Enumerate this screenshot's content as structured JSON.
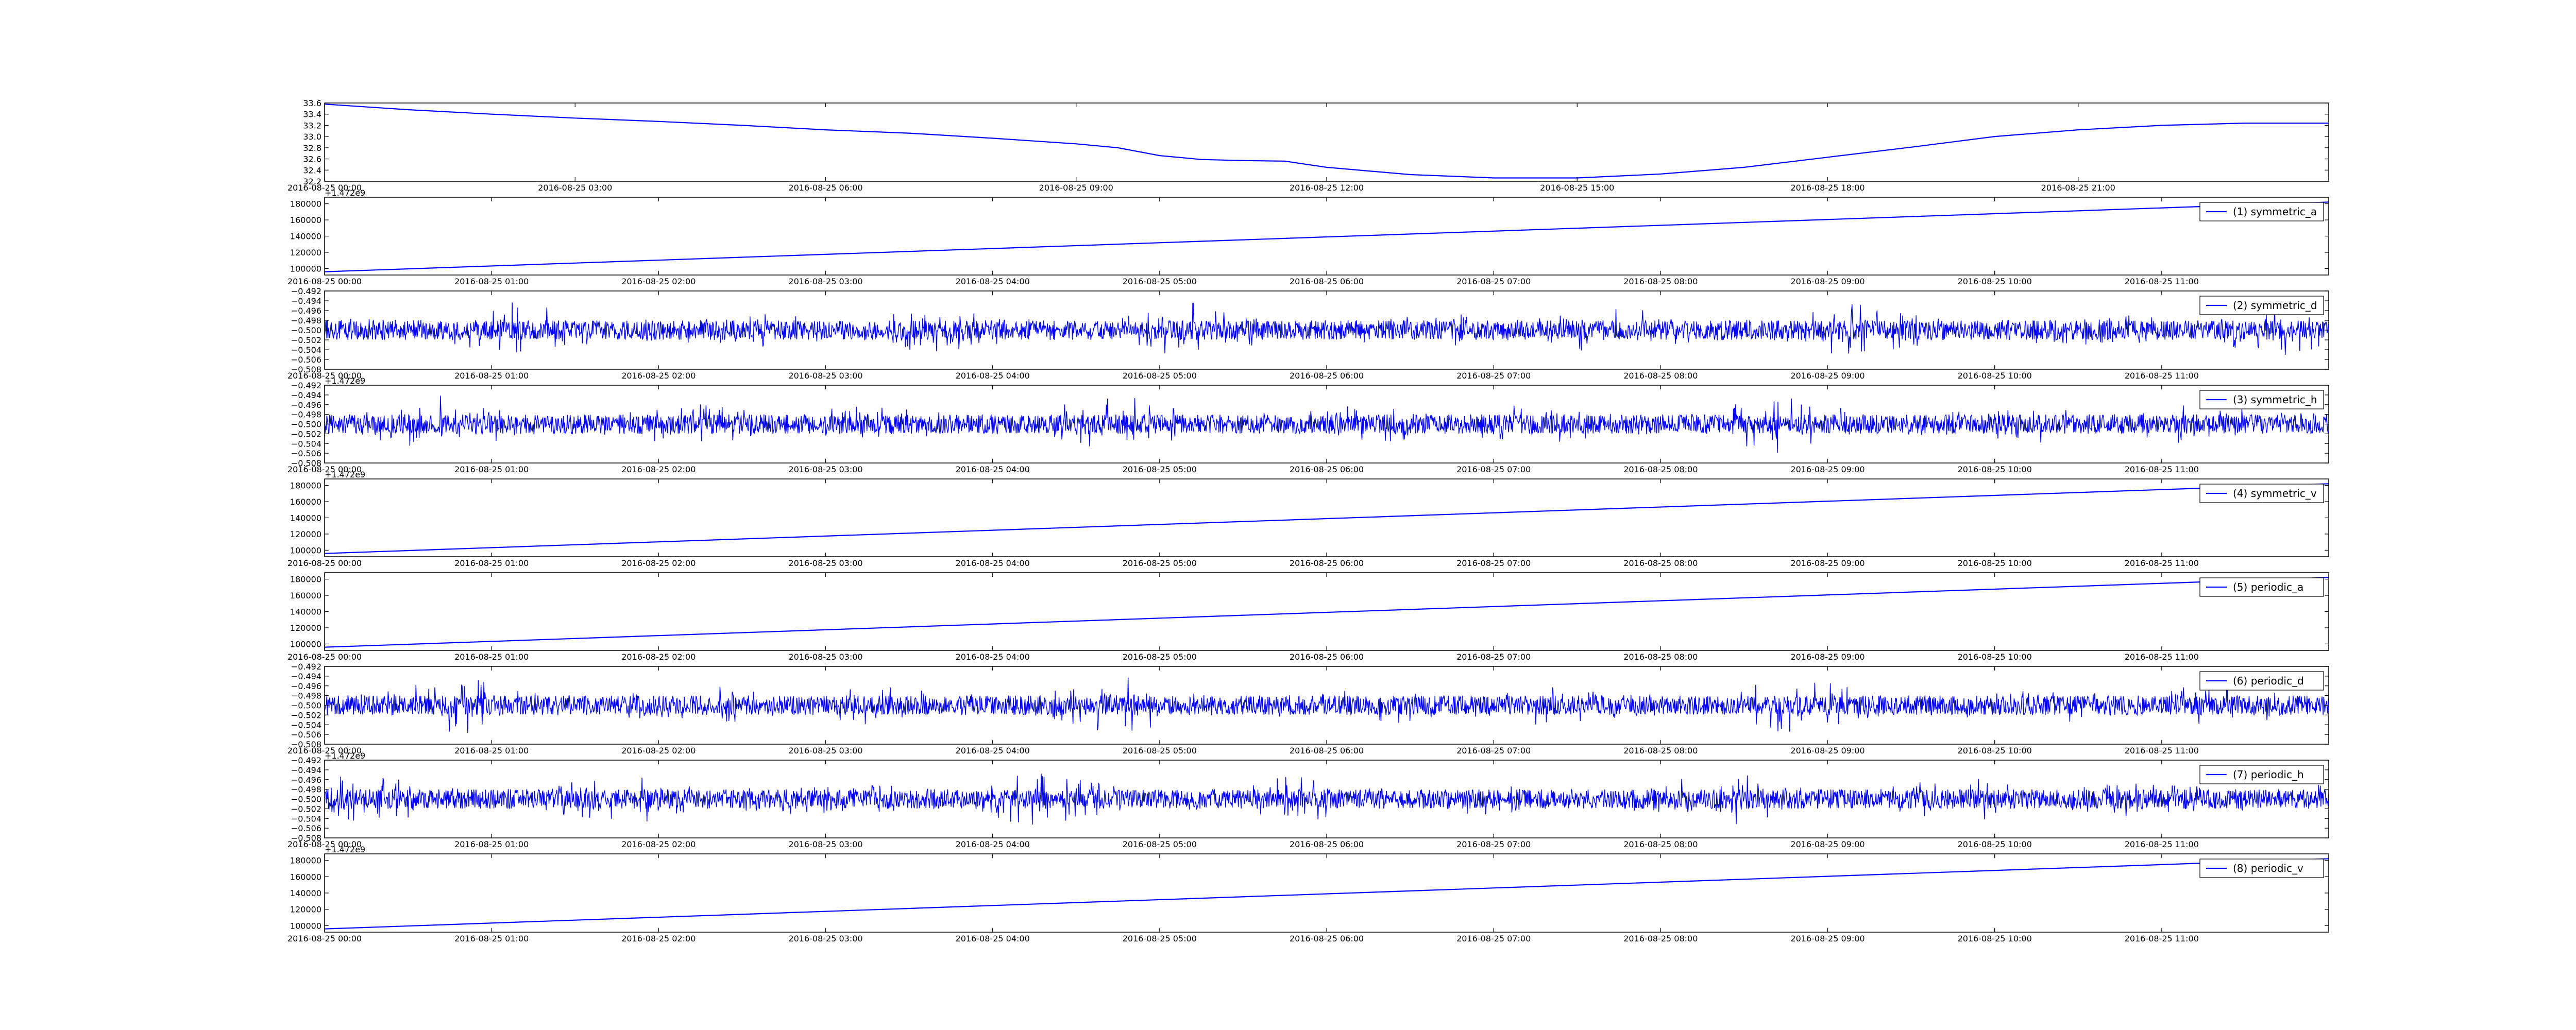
{
  "figure": {
    "background": "#ffffff",
    "line_color": "#0000ff",
    "axis_color": "#000000"
  },
  "chart_data": [
    {
      "type": "line",
      "ylim": [
        32.2,
        33.6
      ],
      "yticks": [
        "32.2",
        "32.4",
        "32.6",
        "32.8",
        "33.0",
        "33.2",
        "33.4",
        "33.6"
      ],
      "xlim": [
        "2016-08-25 00:00",
        "2016-08-26 00:00"
      ],
      "xticks": [
        "2016-08-25 00:00",
        "2016-08-25 03:00",
        "2016-08-25 06:00",
        "2016-08-25 09:00",
        "2016-08-25 12:00",
        "2016-08-25 15:00",
        "2016-08-25 18:00",
        "2016-08-25 21:00"
      ],
      "series": [
        {
          "x": [
            "2016-08-25 00:00",
            "2016-08-25 01:00",
            "2016-08-25 02:00",
            "2016-08-25 03:00",
            "2016-08-25 04:00",
            "2016-08-25 05:00",
            "2016-08-25 06:00",
            "2016-08-25 07:00",
            "2016-08-25 08:00",
            "2016-08-25 09:00",
            "2016-08-25 09:30",
            "2016-08-25 10:00",
            "2016-08-25 10:30",
            "2016-08-25 11:00",
            "2016-08-25 11:30",
            "2016-08-25 12:00",
            "2016-08-25 13:00",
            "2016-08-25 14:00",
            "2016-08-25 15:00",
            "2016-08-25 16:00",
            "2016-08-25 17:00",
            "2016-08-25 18:00",
            "2016-08-25 19:00",
            "2016-08-25 20:00",
            "2016-08-25 21:00",
            "2016-08-25 22:00",
            "2016-08-25 23:00",
            "2016-08-26 00:00"
          ],
          "y": [
            33.58,
            33.48,
            33.4,
            33.33,
            33.27,
            33.2,
            33.12,
            33.06,
            32.97,
            32.87,
            32.8,
            32.66,
            32.59,
            32.57,
            32.56,
            32.45,
            32.32,
            32.26,
            32.26,
            32.33,
            32.45,
            32.63,
            32.81,
            33.0,
            33.12,
            33.2,
            33.24,
            33.24
          ]
        }
      ]
    },
    {
      "type": "line",
      "offset_label": "+1.472e9",
      "ylim": [
        92000,
        188000
      ],
      "yticks": [
        "100000",
        "120000",
        "140000",
        "160000",
        "180000"
      ],
      "xlim": [
        "2016-08-25 00:00",
        "2016-08-25 12:00"
      ],
      "xticks": [
        "2016-08-25 00:00",
        "2016-08-25 01:00",
        "2016-08-25 02:00",
        "2016-08-25 03:00",
        "2016-08-25 04:00",
        "2016-08-25 05:00",
        "2016-08-25 06:00",
        "2016-08-25 07:00",
        "2016-08-25 08:00",
        "2016-08-25 09:00",
        "2016-08-25 10:00",
        "2016-08-25 11:00"
      ],
      "legend_position": "top-right",
      "series": [
        {
          "name": "(1) symmetric_a",
          "x": [
            "2016-08-25 00:00",
            "2016-08-25 12:00"
          ],
          "y": [
            96000,
            182000
          ]
        }
      ]
    },
    {
      "type": "line",
      "noise": true,
      "ylim": [
        -0.508,
        -0.492
      ],
      "yticks": [
        "−0.508",
        "−0.506",
        "−0.504",
        "−0.502",
        "−0.500",
        "−0.498",
        "−0.496",
        "−0.494",
        "−0.492"
      ],
      "xlim": [
        "2016-08-25 00:00",
        "2016-08-25 12:00"
      ],
      "xticks": [
        "2016-08-25 00:00",
        "2016-08-25 01:00",
        "2016-08-25 02:00",
        "2016-08-25 03:00",
        "2016-08-25 04:00",
        "2016-08-25 05:00",
        "2016-08-25 06:00",
        "2016-08-25 07:00",
        "2016-08-25 08:00",
        "2016-08-25 09:00",
        "2016-08-25 10:00",
        "2016-08-25 11:00"
      ],
      "legend_position": "top-right",
      "series": [
        {
          "name": "(2) symmetric_d",
          "baseline": -0.5,
          "range": [
            -0.507,
            -0.493
          ]
        }
      ]
    },
    {
      "type": "line",
      "noise": true,
      "offset_label": "+1.472e9",
      "ylim": [
        -0.508,
        -0.492
      ],
      "yticks": [
        "−0.508",
        "−0.506",
        "−0.504",
        "−0.502",
        "−0.500",
        "−0.498",
        "−0.496",
        "−0.494",
        "−0.492"
      ],
      "xlim": [
        "2016-08-25 00:00",
        "2016-08-25 12:00"
      ],
      "xticks": [
        "2016-08-25 00:00",
        "2016-08-25 01:00",
        "2016-08-25 02:00",
        "2016-08-25 03:00",
        "2016-08-25 04:00",
        "2016-08-25 05:00",
        "2016-08-25 06:00",
        "2016-08-25 07:00",
        "2016-08-25 08:00",
        "2016-08-25 09:00",
        "2016-08-25 10:00",
        "2016-08-25 11:00"
      ],
      "legend_position": "top-right",
      "series": [
        {
          "name": "(3) symmetric_h",
          "baseline": -0.5,
          "range": [
            -0.507,
            -0.493
          ]
        }
      ]
    },
    {
      "type": "line",
      "offset_label": "+1.472e9",
      "ylim": [
        92000,
        188000
      ],
      "yticks": [
        "100000",
        "120000",
        "140000",
        "160000",
        "180000"
      ],
      "xlim": [
        "2016-08-25 00:00",
        "2016-08-25 12:00"
      ],
      "xticks": [
        "2016-08-25 00:00",
        "2016-08-25 01:00",
        "2016-08-25 02:00",
        "2016-08-25 03:00",
        "2016-08-25 04:00",
        "2016-08-25 05:00",
        "2016-08-25 06:00",
        "2016-08-25 07:00",
        "2016-08-25 08:00",
        "2016-08-25 09:00",
        "2016-08-25 10:00",
        "2016-08-25 11:00"
      ],
      "legend_position": "top-right",
      "series": [
        {
          "name": "(4) symmetric_v",
          "x": [
            "2016-08-25 00:00",
            "2016-08-25 12:00"
          ],
          "y": [
            96000,
            182000
          ]
        }
      ]
    },
    {
      "type": "line",
      "ylim": [
        92000,
        188000
      ],
      "yticks": [
        "100000",
        "120000",
        "140000",
        "160000",
        "180000"
      ],
      "xlim": [
        "2016-08-25 00:00",
        "2016-08-25 12:00"
      ],
      "xticks": [
        "2016-08-25 00:00",
        "2016-08-25 01:00",
        "2016-08-25 02:00",
        "2016-08-25 03:00",
        "2016-08-25 04:00",
        "2016-08-25 05:00",
        "2016-08-25 06:00",
        "2016-08-25 07:00",
        "2016-08-25 08:00",
        "2016-08-25 09:00",
        "2016-08-25 10:00",
        "2016-08-25 11:00"
      ],
      "legend_position": "top-right",
      "series": [
        {
          "name": "(5) periodic_a",
          "x": [
            "2016-08-25 00:00",
            "2016-08-25 12:00"
          ],
          "y": [
            96000,
            182000
          ]
        }
      ]
    },
    {
      "type": "line",
      "noise": true,
      "ylim": [
        -0.508,
        -0.492
      ],
      "yticks": [
        "−0.508",
        "−0.506",
        "−0.504",
        "−0.502",
        "−0.500",
        "−0.498",
        "−0.496",
        "−0.494",
        "−0.492"
      ],
      "xlim": [
        "2016-08-25 00:00",
        "2016-08-25 12:00"
      ],
      "xticks": [
        "2016-08-25 00:00",
        "2016-08-25 01:00",
        "2016-08-25 02:00",
        "2016-08-25 03:00",
        "2016-08-25 04:00",
        "2016-08-25 05:00",
        "2016-08-25 06:00",
        "2016-08-25 07:00",
        "2016-08-25 08:00",
        "2016-08-25 09:00",
        "2016-08-25 10:00",
        "2016-08-25 11:00"
      ],
      "legend_position": "top-right",
      "series": [
        {
          "name": "(6) periodic_d",
          "baseline": -0.5,
          "range": [
            -0.507,
            -0.493
          ]
        }
      ]
    },
    {
      "type": "line",
      "noise": true,
      "offset_label": "+1.472e9",
      "ylim": [
        -0.508,
        -0.492
      ],
      "yticks": [
        "−0.508",
        "−0.506",
        "−0.504",
        "−0.502",
        "−0.500",
        "−0.498",
        "−0.496",
        "−0.494",
        "−0.492"
      ],
      "xlim": [
        "2016-08-25 00:00",
        "2016-08-25 12:00"
      ],
      "xticks": [
        "2016-08-25 00:00",
        "2016-08-25 01:00",
        "2016-08-25 02:00",
        "2016-08-25 03:00",
        "2016-08-25 04:00",
        "2016-08-25 05:00",
        "2016-08-25 06:00",
        "2016-08-25 07:00",
        "2016-08-25 08:00",
        "2016-08-25 09:00",
        "2016-08-25 10:00",
        "2016-08-25 11:00"
      ],
      "legend_position": "top-right",
      "series": [
        {
          "name": "(7) periodic_h",
          "baseline": -0.5,
          "range": [
            -0.507,
            -0.493
          ]
        }
      ]
    },
    {
      "type": "line",
      "offset_label": "+1.472e9",
      "ylim": [
        92000,
        188000
      ],
      "yticks": [
        "100000",
        "120000",
        "140000",
        "160000",
        "180000"
      ],
      "xlim": [
        "2016-08-25 00:00",
        "2016-08-25 12:00"
      ],
      "xticks": [
        "2016-08-25 00:00",
        "2016-08-25 01:00",
        "2016-08-25 02:00",
        "2016-08-25 03:00",
        "2016-08-25 04:00",
        "2016-08-25 05:00",
        "2016-08-25 06:00",
        "2016-08-25 07:00",
        "2016-08-25 08:00",
        "2016-08-25 09:00",
        "2016-08-25 10:00",
        "2016-08-25 11:00"
      ],
      "legend_position": "top-right",
      "series": [
        {
          "name": "(8) periodic_v",
          "x": [
            "2016-08-25 00:00",
            "2016-08-25 12:00"
          ],
          "y": [
            96000,
            182000
          ]
        }
      ]
    }
  ]
}
